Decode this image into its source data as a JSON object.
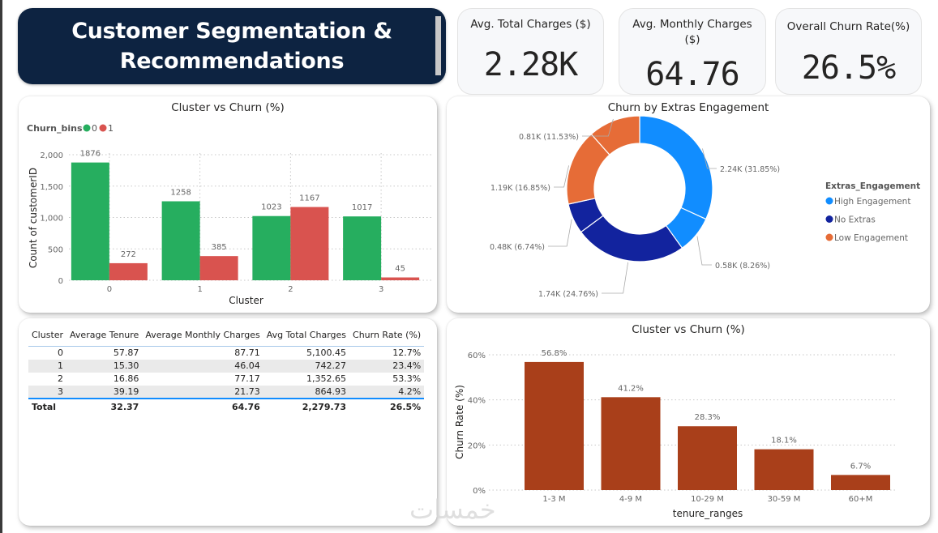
{
  "header": {
    "title_line1": "Customer Segmentation &",
    "title_line2": "Recommendations"
  },
  "kpis": [
    {
      "label": "Avg. Total Charges ($)",
      "value": "2.28K"
    },
    {
      "label": "Avg. Monthly Charges ($)",
      "value": "64.76"
    },
    {
      "label": "Overall Churn Rate(%)",
      "value": "26.5%"
    }
  ],
  "table": {
    "columns": [
      "Cluster",
      "Average Tenure",
      "Average Monthly Charges",
      "Avg Total Charges",
      "Churn Rate (%)"
    ],
    "rows": [
      [
        "0",
        "57.87",
        "87.71",
        "5,100.45",
        "12.7%"
      ],
      [
        "1",
        "15.30",
        "46.04",
        "742.27",
        "23.4%"
      ],
      [
        "2",
        "16.86",
        "77.17",
        "1,352.65",
        "53.3%"
      ],
      [
        "3",
        "39.19",
        "21.73",
        "864.93",
        "4.2%"
      ]
    ],
    "total": [
      "Total",
      "32.37",
      "64.76",
      "2,279.73",
      "26.5%"
    ]
  },
  "watermark": "خمسات",
  "chart_data": [
    {
      "type": "bar",
      "title": "Cluster vs Churn (%)",
      "legend_title": "Churn_bins",
      "legend_position": "top-left",
      "xlabel": "Cluster",
      "ylabel": "Count of customerID",
      "categories": [
        "0",
        "1",
        "2",
        "3"
      ],
      "yticks": [
        "0",
        "500",
        "1,000",
        "1,500",
        "2,000"
      ],
      "ylim": [
        0,
        2000
      ],
      "grid": true,
      "series": [
        {
          "name": "0",
          "color": "#26ae5f",
          "values": [
            1876,
            1258,
            1023,
            1017
          ]
        },
        {
          "name": "1",
          "color": "#d9534f",
          "values": [
            272,
            385,
            1167,
            45
          ]
        }
      ]
    },
    {
      "type": "pie",
      "title": "Churn by Extras Engagement",
      "legend_title": "Extras_Engagement",
      "legend_position": "right",
      "legend": [
        {
          "name": "High Engagement",
          "color": "#118dff"
        },
        {
          "name": "No Extras",
          "color": "#12239e"
        },
        {
          "name": "Low Engagement",
          "color": "#e66c37"
        }
      ],
      "slices": [
        {
          "group": "High Engagement",
          "value_k": 2.24,
          "percent": 31.85,
          "label": "2.24K (31.85%)",
          "color": "#118dff"
        },
        {
          "group": "High Engagement",
          "value_k": 0.58,
          "percent": 8.26,
          "label": "0.58K (8.26%)",
          "color": "#118dff"
        },
        {
          "group": "No Extras",
          "value_k": 1.74,
          "percent": 24.76,
          "label": "1.74K (24.76%)",
          "color": "#12239e"
        },
        {
          "group": "No Extras",
          "value_k": 0.48,
          "percent": 6.74,
          "label": "0.48K (6.74%)",
          "color": "#12239e"
        },
        {
          "group": "Low Engagement",
          "value_k": 1.19,
          "percent": 16.85,
          "label": "1.19K (16.85%)",
          "color": "#e66c37"
        },
        {
          "group": "Low Engagement",
          "value_k": 0.81,
          "percent": 11.53,
          "label": "0.81K (11.53%)",
          "color": "#e66c37"
        }
      ]
    },
    {
      "type": "bar",
      "title": "Cluster vs Churn (%)",
      "xlabel": "tenure_ranges",
      "ylabel": "Churn Rate (%)",
      "categories": [
        "1-3 M",
        "4-9 M",
        "10-29 M",
        "30-59 M",
        "60+M"
      ],
      "values": [
        56.8,
        41.2,
        28.3,
        18.1,
        6.7
      ],
      "value_labels": [
        "56.8%",
        "41.2%",
        "28.3%",
        "18.1%",
        "6.7%"
      ],
      "yticks": [
        "0%",
        "20%",
        "40%",
        "60%"
      ],
      "ylim": [
        0,
        60
      ],
      "grid": true,
      "color": "#a93f1a"
    }
  ]
}
